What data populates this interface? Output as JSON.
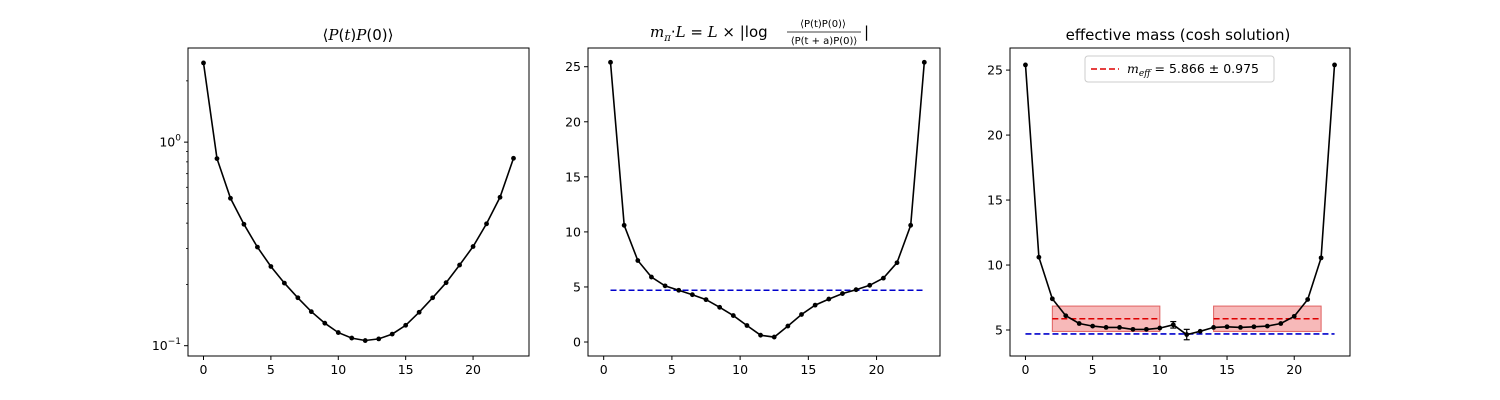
{
  "chart_data": [
    {
      "type": "line",
      "title": "⟨P(t)P(0)⟩",
      "yscale": "log",
      "xlim": [
        -1.15,
        24.15
      ],
      "ylim": [
        0.089,
        2.9
      ],
      "xticks": [
        0,
        5,
        10,
        15,
        20
      ],
      "yticks": [
        {
          "value": 1,
          "base": "10",
          "exp": "0"
        },
        {
          "value": 0.1,
          "base": "10",
          "exp": "−1"
        }
      ],
      "series": [
        {
          "color": "#000000",
          "marker": "circle",
          "x": [
            0,
            1,
            2,
            3,
            4,
            5,
            6,
            7,
            8,
            9,
            10,
            11,
            12,
            13,
            14,
            15,
            16,
            17,
            18,
            19,
            20,
            21,
            22,
            23
          ],
          "values": [
            2.45,
            0.83,
            0.53,
            0.395,
            0.305,
            0.245,
            0.203,
            0.172,
            0.147,
            0.129,
            0.116,
            0.109,
            0.106,
            0.108,
            0.114,
            0.126,
            0.146,
            0.172,
            0.204,
            0.249,
            0.307,
            0.397,
            0.536,
            0.833
          ]
        }
      ]
    },
    {
      "type": "line",
      "title": "m_π·L = L × |log ⟨P(t)P(0)⟩ / ⟨P(t+a)P(0)⟩|",
      "title_parts": {
        "lhs": "m",
        "sub": "π",
        "mid": "·L = L × |log",
        "num": "⟨P(t)P(0)⟩",
        "den": "⟨P(t + a)P(0)⟩",
        "rhs": "|"
      },
      "xlim": [
        -1.15,
        24.65
      ],
      "ylim": [
        -1.27,
        26.7
      ],
      "xticks": [
        0,
        5,
        10,
        15,
        20
      ],
      "yticks": [
        0,
        5,
        10,
        15,
        20,
        25
      ],
      "series": [
        {
          "color": "#000000",
          "marker": "circle",
          "x": [
            0.5,
            1.5,
            2.5,
            3.5,
            4.5,
            5.5,
            6.5,
            7.5,
            8.5,
            9.5,
            10.5,
            11.5,
            12.5,
            13.5,
            14.5,
            15.5,
            16.5,
            17.5,
            18.5,
            19.5,
            20.5,
            21.5,
            22.5,
            23.5
          ],
          "values": [
            25.4,
            10.6,
            7.4,
            5.9,
            5.1,
            4.7,
            4.3,
            3.85,
            3.15,
            2.4,
            1.5,
            0.62,
            0.45,
            1.45,
            2.5,
            3.35,
            3.9,
            4.4,
            4.75,
            5.15,
            5.8,
            7.2,
            10.6,
            25.4
          ]
        }
      ],
      "hlines": [
        {
          "y": 4.7,
          "x_range": [
            0.5,
            23.5
          ],
          "color": "#0000cc",
          "style": "dashed"
        }
      ]
    },
    {
      "type": "line",
      "title": "effective mass (cosh solution)",
      "xlim": [
        -1.15,
        24.15
      ],
      "ylim": [
        3.0,
        26.7
      ],
      "xticks": [
        0,
        5,
        10,
        15,
        20
      ],
      "yticks": [
        5,
        10,
        15,
        20,
        25
      ],
      "series": [
        {
          "color": "#000000",
          "marker": "circle",
          "x": [
            0,
            1,
            2,
            3,
            4,
            5,
            6,
            7,
            8,
            9,
            10,
            11,
            12,
            13,
            14,
            15,
            16,
            17,
            18,
            19,
            20,
            21,
            22,
            23
          ],
          "values": [
            25.4,
            10.6,
            7.4,
            6.1,
            5.5,
            5.3,
            5.2,
            5.2,
            5.05,
            5.05,
            5.15,
            5.4,
            4.65,
            4.9,
            5.2,
            5.25,
            5.2,
            5.25,
            5.3,
            5.5,
            6.05,
            7.35,
            10.55,
            25.4
          ],
          "errors": [
            0,
            0,
            0,
            0,
            0,
            0,
            0,
            0,
            0,
            0,
            0,
            0.25,
            0.4,
            0,
            0,
            0,
            0,
            0,
            0,
            0,
            0,
            0,
            0,
            0
          ]
        }
      ],
      "hlines": [
        {
          "y": 4.7,
          "x_range": [
            0,
            23
          ],
          "color": "#0000cc",
          "style": "dashed"
        },
        {
          "y": 5.866,
          "x_range": [
            2,
            10
          ],
          "color": "#dd0000",
          "style": "dashed"
        },
        {
          "y": 5.866,
          "x_range": [
            14,
            22
          ],
          "color": "#dd0000",
          "style": "dashed"
        }
      ],
      "bands": [
        {
          "x_range": [
            2,
            10
          ],
          "y_range": [
            4.891,
            6.841
          ],
          "color": "#f08080"
        },
        {
          "x_range": [
            14,
            22
          ],
          "y_range": [
            4.891,
            6.841
          ],
          "color": "#f08080"
        }
      ],
      "legend": {
        "position": "top-center",
        "entries": [
          {
            "label_main": "m",
            "label_sub": "eff",
            "label_rest": " = 5.866 ± 0.975",
            "color": "#dd0000",
            "style": "dashed"
          }
        ]
      }
    }
  ]
}
